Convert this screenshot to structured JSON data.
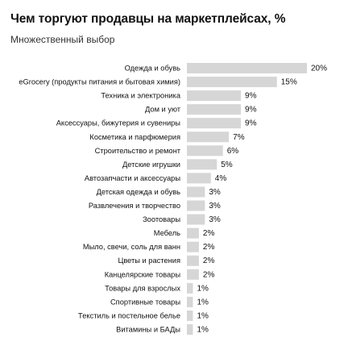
{
  "chart_data": {
    "type": "bar",
    "orientation": "horizontal",
    "title": "Чем торгуют продавцы на маркетплейсах, %",
    "subtitle": "Множественный выбор",
    "categories": [
      "Одежда и обувь",
      "eGrocery (продукты питания и бытовая химия)",
      "Техника и электроника",
      "Дом и уют",
      "Аксессуары, бижутерия и сувениры",
      "Косметика и парфюмерия",
      "Строительство и ремонт",
      "Детские игрушки",
      "Автозапчасти и аксессуары",
      "Детская одежда и обувь",
      "Развлечения и творчество",
      "Зоотовары",
      "Мебель",
      "Мыло, свечи, соль для ванн",
      "Цветы и растения",
      "Канцелярские товары",
      "Товары для взрослых",
      "Спортивные товары",
      "Текстиль и постельное белье",
      "Витамины и БАДы"
    ],
    "values": [
      20,
      15,
      9,
      9,
      9,
      7,
      6,
      5,
      4,
      3,
      3,
      3,
      2,
      2,
      2,
      2,
      1,
      1,
      1,
      1
    ],
    "value_labels": [
      "20%",
      "15%",
      "9%",
      "9%",
      "9%",
      "7%",
      "6%",
      "5%",
      "4%",
      "3%",
      "3%",
      "3%",
      "2%",
      "2%",
      "2%",
      "2%",
      "1%",
      "1%",
      "1%",
      "1%"
    ],
    "xlim": [
      0,
      20
    ],
    "grid": false,
    "legend": "none",
    "bar_color": "#d6d6d6"
  }
}
